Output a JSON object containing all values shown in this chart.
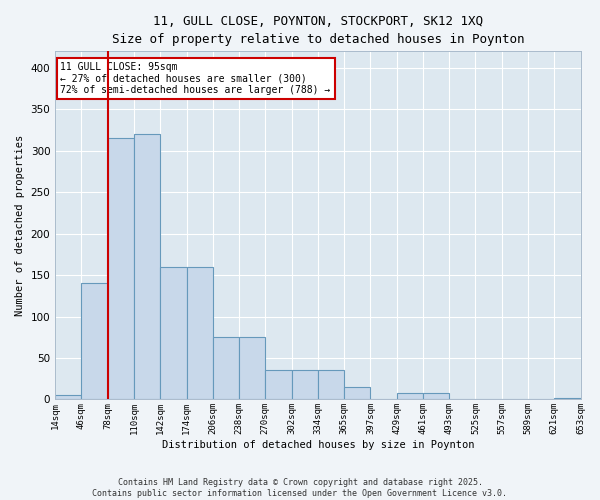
{
  "title_line1": "11, GULL CLOSE, POYNTON, STOCKPORT, SK12 1XQ",
  "title_line2": "Size of property relative to detached houses in Poynton",
  "xlabel": "Distribution of detached houses by size in Poynton",
  "ylabel": "Number of detached properties",
  "bar_values": [
    5,
    140,
    315,
    320,
    160,
    160,
    75,
    75,
    35,
    35,
    35,
    15,
    0,
    8,
    8,
    0,
    0,
    0,
    0,
    2
  ],
  "bar_labels": [
    "14sqm",
    "46sqm",
    "78sqm",
    "110sqm",
    "142sqm",
    "174sqm",
    "206sqm",
    "238sqm",
    "270sqm",
    "302sqm",
    "334sqm",
    "365sqm",
    "397sqm",
    "429sqm",
    "461sqm",
    "493sqm",
    "525sqm",
    "557sqm",
    "589sqm",
    "621sqm",
    "653sqm"
  ],
  "bar_color": "#c8d8ea",
  "bar_edge_color": "#6699bb",
  "vline_x": 1.5,
  "vline_color": "#cc0000",
  "annotation_text": "11 GULL CLOSE: 95sqm\n← 27% of detached houses are smaller (300)\n72% of semi-detached houses are larger (788) →",
  "annotation_box_color": "#cc0000",
  "ylim": [
    0,
    420
  ],
  "yticks": [
    0,
    50,
    100,
    150,
    200,
    250,
    300,
    350,
    400
  ],
  "footer_line1": "Contains HM Land Registry data © Crown copyright and database right 2025.",
  "footer_line2": "Contains public sector information licensed under the Open Government Licence v3.0.",
  "bg_color": "#f0f4f8",
  "plot_bg_color": "#dde8f0"
}
